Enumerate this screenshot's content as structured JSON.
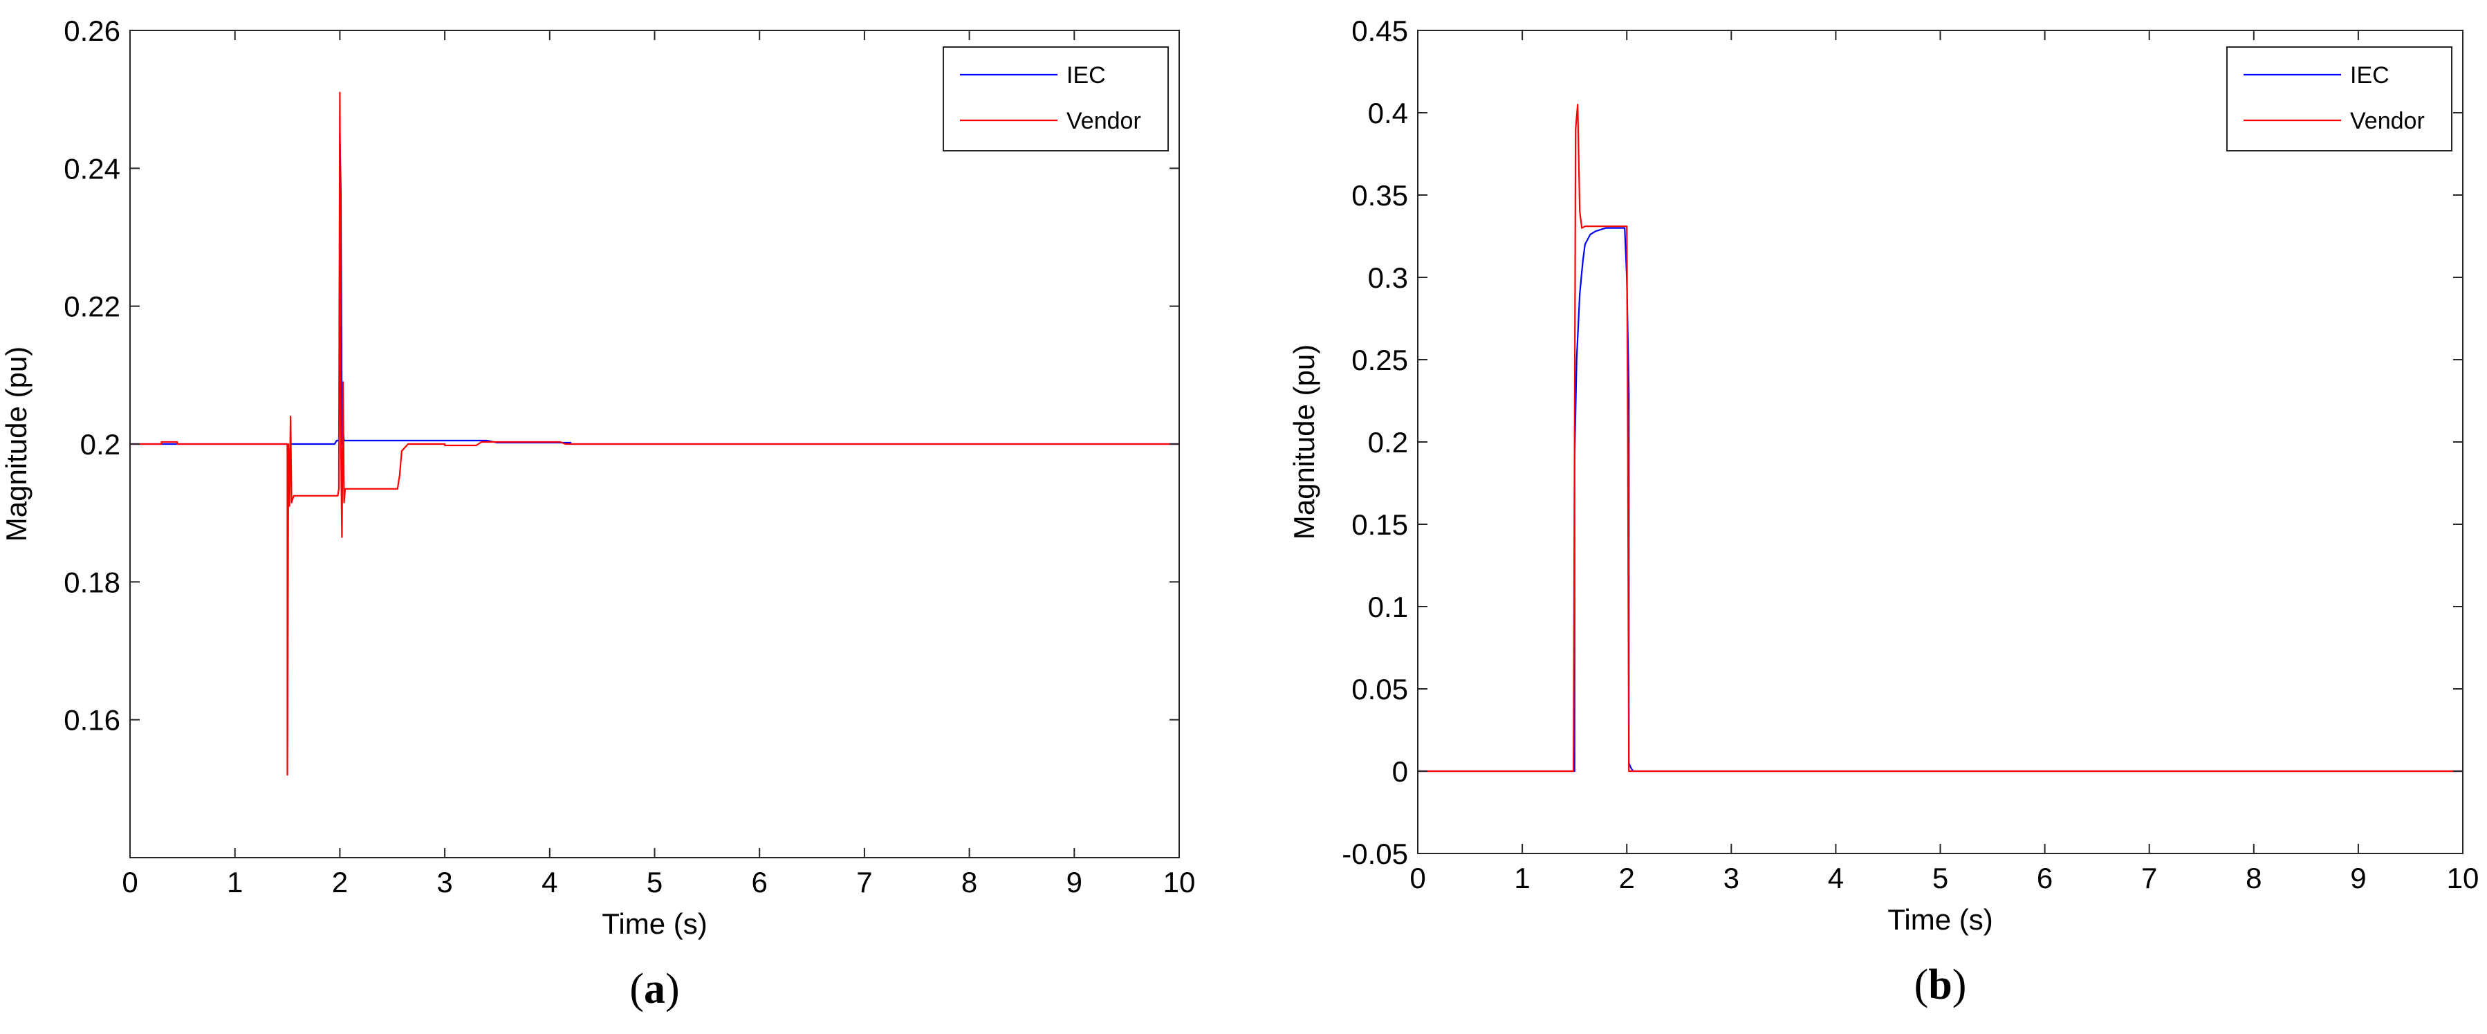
{
  "chart_data": [
    {
      "type": "line",
      "panel_label": "a",
      "xlabel": "Time (s)",
      "ylabel": "Magnitude (pu)",
      "xlim": [
        0,
        10
      ],
      "ylim": [
        0.14,
        0.26
      ],
      "xticks": [
        0,
        1,
        2,
        3,
        4,
        5,
        6,
        7,
        8,
        9,
        10
      ],
      "xtick_labels": [
        "0",
        "1",
        "2",
        "3",
        "4",
        "5",
        "6",
        "7",
        "8",
        "9",
        "10"
      ],
      "yticks": [
        0.16,
        0.18,
        0.2,
        0.22,
        0.24,
        0.26
      ],
      "ytick_labels": [
        "0.16",
        "0.18",
        "0.2",
        "0.22",
        "0.24",
        "0.26"
      ],
      "grid": false,
      "legend_position": "top-right",
      "series": [
        {
          "name": "IEC",
          "color": "#0000ff",
          "points": [
            [
              0,
              0.2
            ],
            [
              0.1,
              0.2
            ],
            [
              0.2,
              0.2
            ],
            [
              0.5,
              0.2
            ],
            [
              1.5,
              0.2
            ],
            [
              1.5,
              0.199
            ],
            [
              1.52,
              0.198
            ],
            [
              1.53,
              0.2
            ],
            [
              1.55,
              0.2
            ],
            [
              1.9,
              0.2
            ],
            [
              1.95,
              0.2
            ],
            [
              1.97,
              0.2005
            ],
            [
              1.99,
              0.2005
            ],
            [
              2.0,
              0.21
            ],
            [
              2.0,
              0.245
            ],
            [
              2.01,
              0.236
            ],
            [
              2.02,
              0.2
            ],
            [
              2.02,
              0.2035
            ],
            [
              2.04,
              0.2005
            ],
            [
              3.0,
              0.2005
            ],
            [
              3.4,
              0.2005
            ],
            [
              3.5,
              0.2002
            ],
            [
              4.2,
              0.2002
            ],
            [
              4.2,
              0.2
            ],
            [
              10,
              0.2
            ]
          ]
        },
        {
          "name": "Vendor",
          "color": "#ff0000",
          "points": [
            [
              0,
              0.2
            ],
            [
              0.3,
              0.2
            ],
            [
              0.3,
              0.2003
            ],
            [
              0.45,
              0.2003
            ],
            [
              0.45,
              0.2
            ],
            [
              1.49,
              0.2
            ],
            [
              1.5,
              0.2
            ],
            [
              1.5,
              0.152
            ],
            [
              1.51,
              0.2
            ],
            [
              1.52,
              0.191
            ],
            [
              1.53,
              0.204
            ],
            [
              1.54,
              0.1915
            ],
            [
              1.56,
              0.1925
            ],
            [
              1.98,
              0.1925
            ],
            [
              1.99,
              0.1935
            ],
            [
              2.0,
              0.251
            ],
            [
              2.01,
              0.2
            ],
            [
              2.02,
              0.1865
            ],
            [
              2.03,
              0.209
            ],
            [
              2.04,
              0.1915
            ],
            [
              2.05,
              0.1935
            ],
            [
              2.55,
              0.1935
            ],
            [
              2.57,
              0.1955
            ],
            [
              2.59,
              0.199
            ],
            [
              2.65,
              0.2
            ],
            [
              3.0,
              0.2
            ],
            [
              3.0,
              0.1998
            ],
            [
              3.3,
              0.1998
            ],
            [
              3.35,
              0.2003
            ],
            [
              4.1,
              0.2003
            ],
            [
              4.15,
              0.2
            ],
            [
              10,
              0.2
            ]
          ]
        }
      ]
    },
    {
      "type": "line",
      "panel_label": "b",
      "xlabel": "Time (s)",
      "ylabel": "Magnitude (pu)",
      "xlim": [
        0,
        10
      ],
      "ylim": [
        -0.05,
        0.45
      ],
      "xticks": [
        0,
        1,
        2,
        3,
        4,
        5,
        6,
        7,
        8,
        9,
        10
      ],
      "xtick_labels": [
        "0",
        "1",
        "2",
        "3",
        "4",
        "5",
        "6",
        "7",
        "8",
        "9",
        "10"
      ],
      "yticks": [
        -0.05,
        0,
        0.05,
        0.1,
        0.15,
        0.2,
        0.25,
        0.3,
        0.35,
        0.4,
        0.45
      ],
      "ytick_labels": [
        "-0.05",
        "0",
        "0.05",
        "0.1",
        "0.15",
        "0.2",
        "0.25",
        "0.3",
        "0.35",
        "0.4",
        "0.45"
      ],
      "grid": false,
      "legend_position": "top-right",
      "series": [
        {
          "name": "IEC",
          "color": "#0000ff",
          "points": [
            [
              0,
              0
            ],
            [
              1.5,
              0
            ],
            [
              1.5,
              0.19
            ],
            [
              1.52,
              0.25
            ],
            [
              1.55,
              0.29
            ],
            [
              1.58,
              0.31
            ],
            [
              1.6,
              0.32
            ],
            [
              1.65,
              0.326
            ],
            [
              1.7,
              0.328
            ],
            [
              1.8,
              0.33
            ],
            [
              1.98,
              0.33
            ],
            [
              2.0,
              0.3
            ],
            [
              2.02,
              0.23
            ],
            [
              2.02,
              0.005
            ],
            [
              2.04,
              0.002
            ],
            [
              2.06,
              0
            ],
            [
              10,
              0
            ]
          ]
        },
        {
          "name": "Vendor",
          "color": "#ff0000",
          "points": [
            [
              0,
              0
            ],
            [
              1.49,
              0
            ],
            [
              1.5,
              0.2
            ],
            [
              1.51,
              0.39
            ],
            [
              1.53,
              0.405
            ],
            [
              1.55,
              0.34
            ],
            [
              1.57,
              0.33
            ],
            [
              1.6,
              0.331
            ],
            [
              2.0,
              0.331
            ],
            [
              2.01,
              0.2
            ],
            [
              2.02,
              0
            ],
            [
              10,
              0
            ]
          ]
        }
      ]
    }
  ]
}
